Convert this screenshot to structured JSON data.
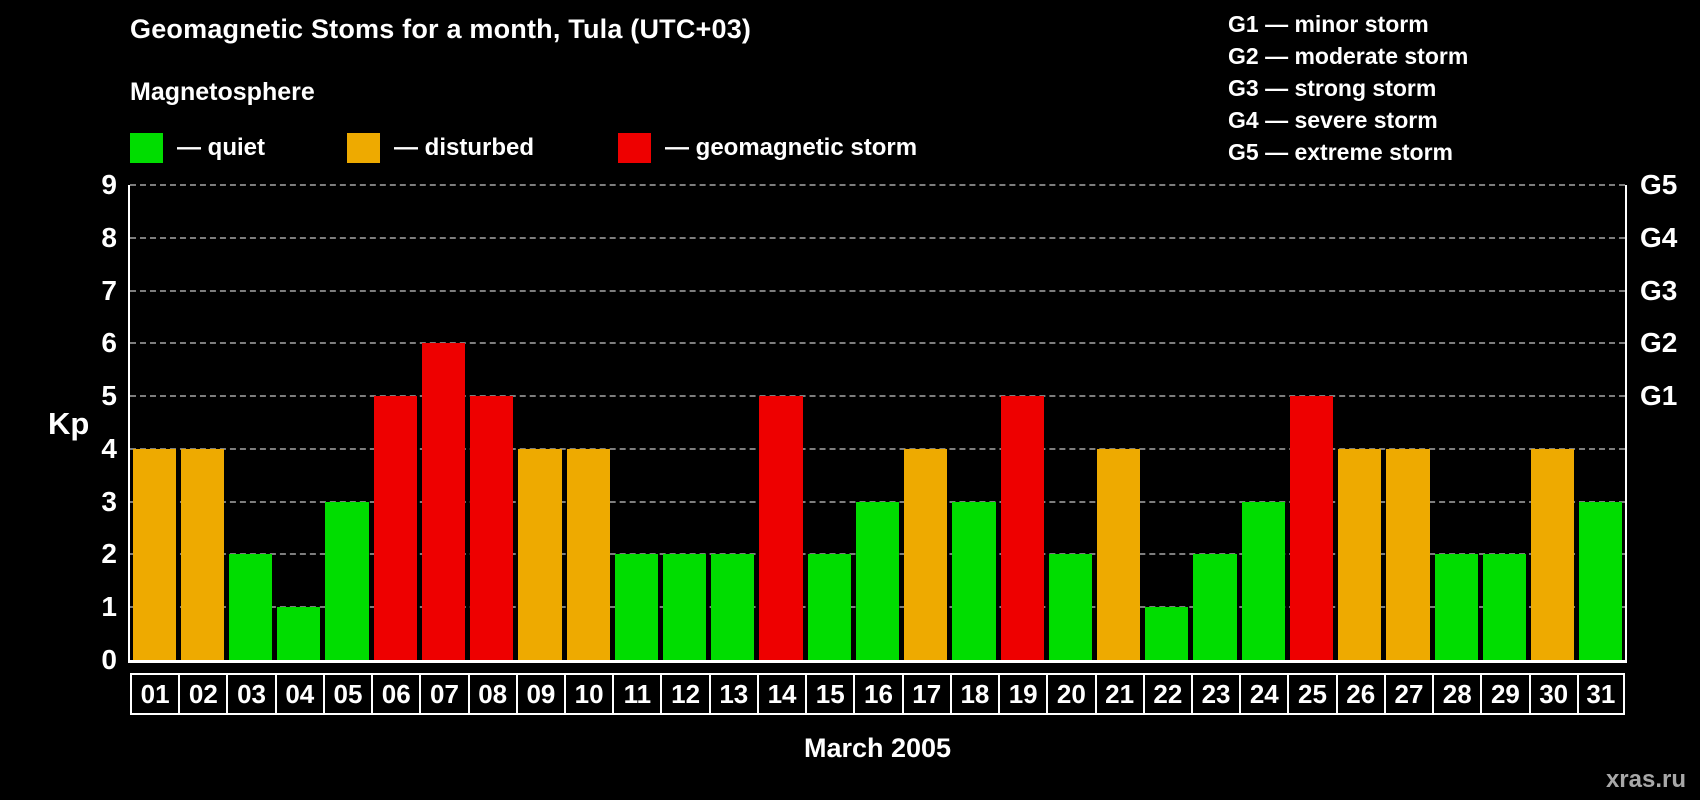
{
  "title": "Geomagnetic Stoms for a month, Tula (UTC+03)",
  "legend": {
    "heading": "Magnetosphere",
    "quiet": "— quiet",
    "disturbed": "— disturbed",
    "storm": "— geomagnetic storm"
  },
  "storm_scale": {
    "g1": "G1 — minor storm",
    "g2": "G2 — moderate storm",
    "g3": "G3 — strong storm",
    "g4": "G4 — severe storm",
    "g5": "G5 — extreme storm"
  },
  "axis": {
    "y_label": "Kp",
    "x_label": "March 2005"
  },
  "watermark": "xras.ru",
  "colors": {
    "quiet": "#00dd00",
    "disturbed": "#eeaa00",
    "storm": "#ee0000",
    "background": "#000000",
    "text": "#ffffff",
    "grid": "#7d7d7d"
  },
  "chart_data": {
    "type": "bar",
    "title": "Geomagnetic Stoms for a month, Tula (UTC+03)",
    "xlabel": "March 2005",
    "ylabel": "Kp",
    "ylim": [
      0,
      9
    ],
    "yticks": [
      0,
      1,
      2,
      3,
      4,
      5,
      6,
      7,
      8,
      9
    ],
    "grid": "horizontal-dashed",
    "legend_position": "top-left",
    "right_axis": [
      {
        "label": "G1",
        "kp": 5
      },
      {
        "label": "G2",
        "kp": 6
      },
      {
        "label": "G3",
        "kp": 7
      },
      {
        "label": "G4",
        "kp": 8
      },
      {
        "label": "G5",
        "kp": 9
      }
    ],
    "categories": [
      "01",
      "02",
      "03",
      "04",
      "05",
      "06",
      "07",
      "08",
      "09",
      "10",
      "11",
      "12",
      "13",
      "14",
      "15",
      "16",
      "17",
      "18",
      "19",
      "20",
      "21",
      "22",
      "23",
      "24",
      "25",
      "26",
      "27",
      "28",
      "29",
      "30",
      "31"
    ],
    "values": [
      4,
      4,
      2,
      1,
      3,
      5,
      6,
      5,
      4,
      4,
      2,
      2,
      2,
      5,
      2,
      3,
      4,
      3,
      5,
      2,
      4,
      1,
      2,
      3,
      5,
      4,
      4,
      2,
      2,
      4,
      3
    ],
    "color_rule": {
      "storm_min": 5,
      "disturbed_min": 4
    }
  }
}
